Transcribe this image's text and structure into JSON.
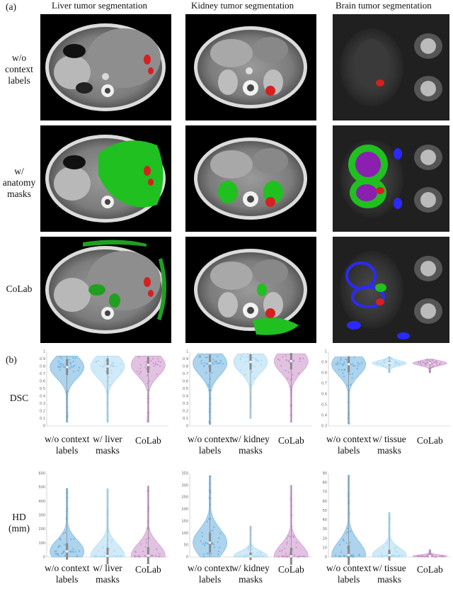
{
  "panel_a_label": "(a)",
  "panel_b_label": "(b)",
  "columns": [
    "Liver tumor segmentation",
    "Kidney tumor segmentation",
    "Brain tumor segmentation"
  ],
  "rows": [
    {
      "line1": "w/o",
      "line2": "context",
      "line3": "labels"
    },
    {
      "line1": "w/",
      "line2": "anatomy",
      "line3": "masks"
    },
    {
      "line1": "CoLab",
      "line2": "",
      "line3": ""
    }
  ],
  "metrics": [
    {
      "line1": "DSC",
      "line2": ""
    },
    {
      "line1": "HD",
      "line2": "(mm)"
    }
  ],
  "colors": {
    "without_context": "#6aaede",
    "with_masks": "#a9d9f3",
    "colab": "#c88fc8",
    "tumor": "#d62020",
    "anatomy_green": "#20c020",
    "brain_purple": "#8a1fb0",
    "brain_blue": "#2a2aff"
  },
  "chart_data": [
    {
      "type": "violin",
      "panel": "liver-dsc",
      "categories": [
        [
          "w/o context",
          "labels"
        ],
        [
          "w/ liver",
          "masks"
        ],
        [
          "CoLab",
          ""
        ]
      ],
      "ylim": [
        0,
        1
      ],
      "yticks": [
        "1",
        "0.9",
        "0.8",
        "0.7",
        "0.6",
        "0.5",
        "0.4",
        "0.3",
        "0.2",
        "0.1",
        "0"
      ],
      "medians": [
        0.79,
        0.8,
        0.82
      ],
      "ranges": [
        [
          0.05,
          0.94
        ],
        [
          0.05,
          0.94
        ],
        [
          0.05,
          0.94
        ]
      ]
    },
    {
      "type": "violin",
      "panel": "kidney-dsc",
      "categories": [
        [
          "w/o context",
          "labels"
        ],
        [
          "w/ kidney",
          "masks"
        ],
        [
          "CoLab",
          ""
        ]
      ],
      "ylim": [
        0,
        1
      ],
      "yticks": [
        "1",
        "0.9",
        "0.8",
        "0.7",
        "0.6",
        "0.5",
        "0.4",
        "0.3",
        "0.2",
        "0.1",
        "0"
      ],
      "medians": [
        0.84,
        0.86,
        0.87
      ],
      "ranges": [
        [
          0.02,
          0.97
        ],
        [
          0.1,
          0.97
        ],
        [
          0.05,
          0.97
        ]
      ]
    },
    {
      "type": "violin",
      "panel": "brain-dsc",
      "categories": [
        [
          "w/o context",
          "labels"
        ],
        [
          "w/ tissue",
          "masks"
        ],
        [
          "CoLab",
          ""
        ]
      ],
      "ylim": [
        0.3,
        1
      ],
      "yticks": [
        "1",
        "0.9",
        "0.8",
        "0.7",
        "0.6",
        "0.5",
        "0.4",
        "0.3"
      ],
      "medians": [
        0.88,
        0.89,
        0.89
      ],
      "ranges": [
        [
          0.32,
          0.95
        ],
        [
          0.8,
          0.95
        ],
        [
          0.8,
          0.93
        ]
      ]
    },
    {
      "type": "violin",
      "panel": "liver-hd",
      "categories": [
        [
          "w/o context",
          "labels"
        ],
        [
          "w/ liver",
          "masks"
        ],
        [
          "CoLab",
          ""
        ]
      ],
      "ylim": [
        0,
        600
      ],
      "yticks": [
        "600",
        "500",
        "400",
        "300",
        "200",
        "100",
        "0"
      ],
      "medians": [
        40,
        8,
        10
      ],
      "ranges": [
        [
          0,
          490
        ],
        [
          0,
          490
        ],
        [
          0,
          510
        ]
      ]
    },
    {
      "type": "violin",
      "panel": "kidney-hd",
      "categories": [
        [
          "w/o context",
          "labels"
        ],
        [
          "w/ kidney",
          "masks"
        ],
        [
          "CoLab",
          ""
        ]
      ],
      "ylim": [
        0,
        350
      ],
      "yticks": [
        "350",
        "300",
        "250",
        "200",
        "150",
        "100",
        "50",
        "0"
      ],
      "medians": [
        60,
        3,
        3
      ],
      "ranges": [
        [
          0,
          340
        ],
        [
          0,
          130
        ],
        [
          0,
          300
        ]
      ]
    },
    {
      "type": "violin",
      "panel": "brain-hd",
      "categories": [
        [
          "w/o context",
          "labels"
        ],
        [
          "w/ tissue",
          "masks"
        ],
        [
          "CoLab",
          ""
        ]
      ],
      "ylim": [
        0,
        90
      ],
      "yticks": [
        "90",
        "80",
        "70",
        "60",
        "50",
        "40",
        "30",
        "20",
        "10",
        "0"
      ],
      "medians": [
        2,
        2,
        1
      ],
      "ranges": [
        [
          0,
          88
        ],
        [
          0,
          48
        ],
        [
          0,
          8
        ]
      ]
    }
  ]
}
